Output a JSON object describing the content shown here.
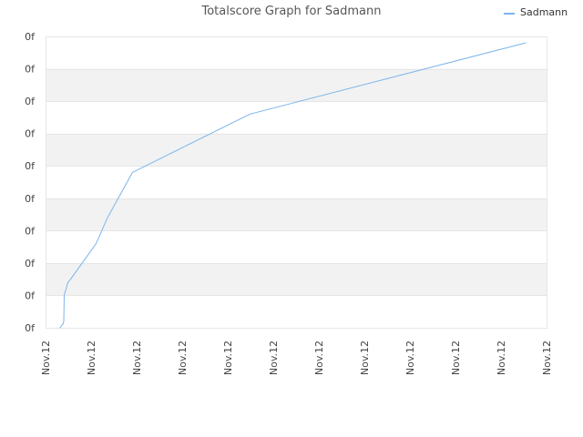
{
  "chart_data": {
    "type": "line",
    "title": "Totalscore Graph for Sadmann",
    "xlabel": "",
    "ylabel": "",
    "x_tick_labels": [
      "Nov.12",
      "Nov.12",
      "Nov.12",
      "Nov.12",
      "Nov.12",
      "Nov.12",
      "Nov.12",
      "Nov.12",
      "Nov.12",
      "Nov.12",
      "Nov.12",
      "Nov.12"
    ],
    "y_tick_labels": [
      "0f",
      "0f",
      "0f",
      "0f",
      "0f",
      "0f",
      "0f",
      "0f",
      "0f",
      "0f"
    ],
    "xlim": [
      0,
      11
    ],
    "ylim": [
      0,
      9
    ],
    "grid": true,
    "legend": "top-right",
    "series": [
      {
        "name": "Sadmann",
        "color": "#7cb5ec",
        "x": [
          0.32,
          0.37,
          0.37,
          0.38,
          0.4,
          0.41,
          0.47,
          0.49,
          0.55,
          1.11,
          1.36,
          1.91,
          4.49,
          10.54
        ],
        "y": [
          0.0,
          0.1,
          0.1,
          0.1,
          0.2,
          1.0,
          1.3,
          1.4,
          1.5,
          2.6,
          3.4,
          4.8,
          6.6,
          8.8
        ]
      }
    ]
  },
  "colors": {
    "band": "#f2f2f2",
    "gridline": "#e6e6e6",
    "border": "#e6e6e6"
  }
}
